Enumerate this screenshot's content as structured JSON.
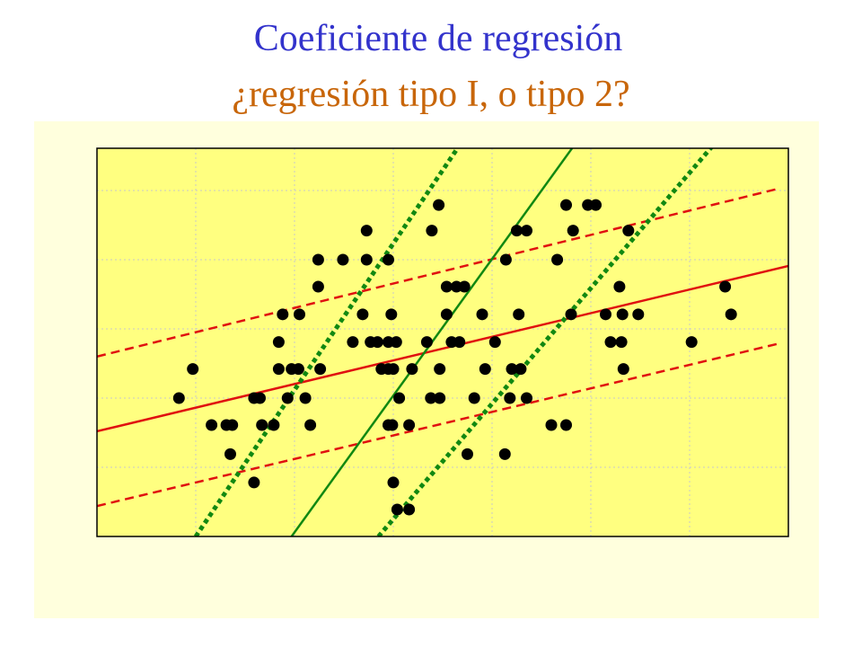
{
  "chart_data": {
    "type": "scatter",
    "title": "Coeficiente de regresión",
    "subtitle": "¿regresión tipo I, o tipo 2?",
    "xlim": [
      0,
      7
    ],
    "ylim": [
      0,
      5.61
    ],
    "xticks": [
      1,
      2,
      3,
      4,
      5,
      6
    ],
    "yticks": [
      1,
      2,
      3,
      4,
      5
    ],
    "grid": true,
    "color": "#000000",
    "x": [
      0.83,
      0.97,
      1.16,
      1.31,
      1.37,
      1.35,
      1.59,
      1.59,
      1.67,
      1.79,
      1.65,
      1.84,
      1.84,
      1.88,
      1.93,
      1.97,
      2.05,
      2.04,
      2.11,
      2.16,
      2.24,
      2.24,
      2.26,
      2.49,
      2.73,
      2.73,
      2.95,
      2.69,
      2.59,
      2.77,
      2.84,
      2.88,
      2.95,
      3.0,
      2.98,
      2.95,
      3.03,
      3.06,
      2.95,
      2.99,
      3.16,
      3.19,
      3.34,
      3.39,
      3.46,
      3.38,
      3.47,
      3.54,
      3.64,
      3.72,
      3.54,
      3.59,
      3.67,
      3.47,
      3.82,
      3.9,
      3.93,
      4.03,
      3.75,
      3.0,
      3.04,
      3.16,
      4.13,
      4.14,
      4.18,
      4.2,
      4.25,
      4.29,
      4.35,
      4.27,
      4.35,
      4.6,
      4.75,
      4.66,
      4.75,
      4.82,
      4.8,
      4.97,
      5.05,
      5.15,
      5.2,
      5.31,
      5.29,
      5.33,
      5.32,
      5.38,
      5.48,
      6.02,
      6.36,
      6.42
    ],
    "y": [
      2.0,
      2.42,
      1.61,
      1.61,
      1.61,
      1.19,
      2.0,
      0.78,
      1.61,
      1.61,
      2.0,
      2.42,
      2.81,
      3.21,
      2.0,
      2.42,
      3.21,
      2.42,
      2.0,
      1.61,
      3.61,
      4.0,
      2.42,
      4.0,
      4.42,
      4.0,
      4.0,
      3.21,
      2.81,
      2.81,
      2.81,
      2.42,
      2.42,
      2.42,
      3.21,
      2.81,
      2.81,
      2.0,
      1.61,
      1.61,
      1.61,
      2.42,
      2.81,
      4.42,
      4.79,
      2.0,
      2.0,
      3.61,
      3.61,
      3.61,
      3.21,
      2.81,
      2.81,
      2.42,
      2.0,
      3.21,
      2.42,
      2.81,
      1.19,
      0.78,
      0.39,
      0.39,
      1.19,
      4.0,
      2.0,
      2.42,
      4.42,
      2.42,
      2.0,
      3.21,
      4.42,
      1.61,
      1.61,
      4.0,
      4.79,
      4.42,
      3.21,
      4.79,
      4.79,
      3.21,
      2.81,
      2.81,
      3.61,
      2.42,
      3.21,
      4.42,
      3.21,
      2.81,
      3.61,
      3.21
    ],
    "lines": [
      {
        "color": "#e01010",
        "style": "solid",
        "x": [
          0,
          7
        ],
        "y": [
          1.52,
          3.91
        ]
      },
      {
        "color": "#e01010",
        "style": "dashed",
        "x": [
          0,
          6.91
        ],
        "y": [
          2.6,
          5.03
        ]
      },
      {
        "color": "#e01010",
        "style": "dashed",
        "x": [
          0,
          6.91
        ],
        "y": [
          0.44,
          2.79
        ]
      },
      {
        "color": "#118811",
        "style": "solid",
        "x": [
          1.97,
          4.81
        ],
        "y": [
          0,
          5.61
        ]
      },
      {
        "color": "#118811",
        "style": "dotted",
        "x": [
          1.0,
          3.65
        ],
        "y": [
          0,
          5.61
        ]
      },
      {
        "color": "#118811",
        "style": "dotted",
        "x": [
          2.85,
          6.29
        ],
        "y": [
          0,
          5.74
        ]
      }
    ]
  }
}
